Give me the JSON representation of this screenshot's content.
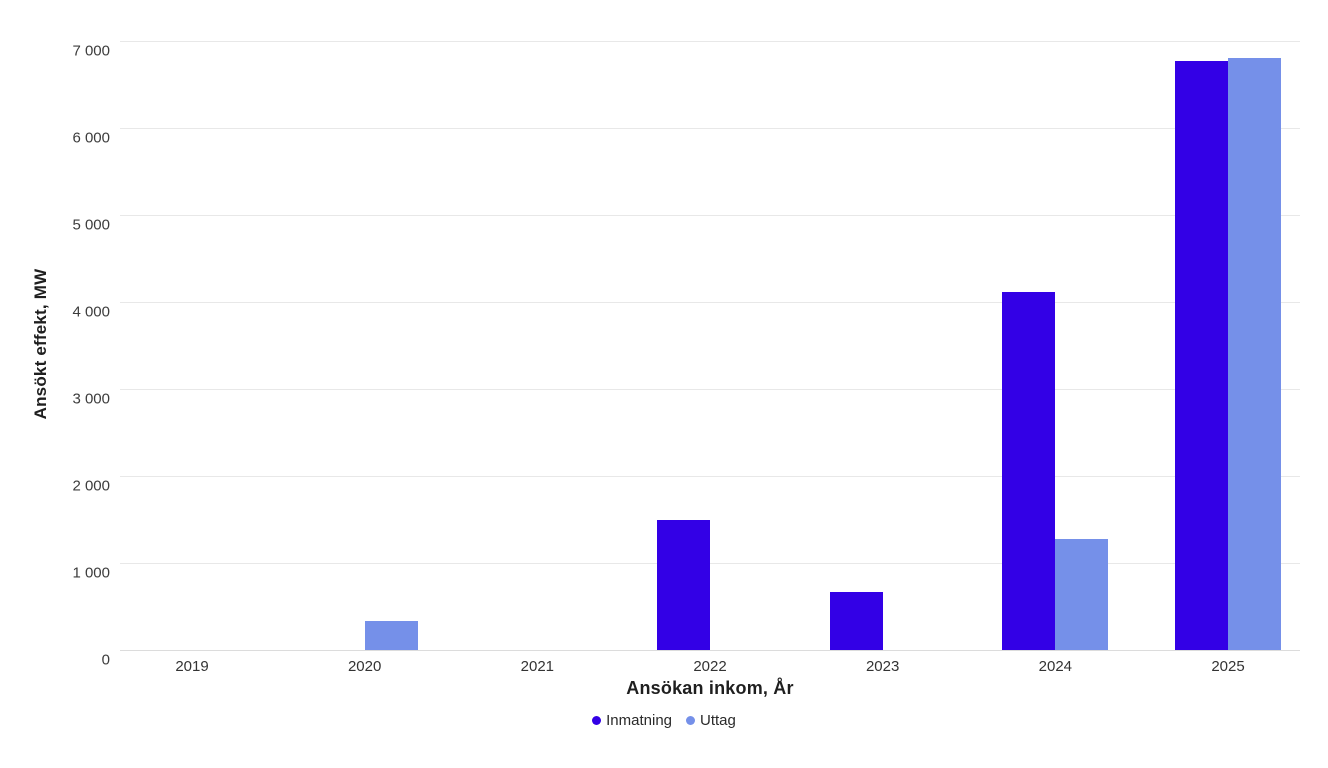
{
  "chart_data": {
    "type": "bar",
    "title": "",
    "xlabel": "Ansökan inkom, År",
    "ylabel": "Ansökt effekt, MW",
    "categories": [
      "2019",
      "2020",
      "2021",
      "2022",
      "2023",
      "2024",
      "2025"
    ],
    "series": [
      {
        "name": "Inmatning",
        "color": "#3300E6",
        "values": [
          0,
          0,
          0,
          1490,
          670,
          4120,
          6770
        ]
      },
      {
        "name": "Uttag",
        "color": "#7590E9",
        "values": [
          0,
          330,
          0,
          0,
          0,
          1280,
          6800
        ]
      }
    ],
    "ylim": [
      0,
      7000
    ],
    "y_ticks": [
      {
        "value": 0,
        "label": "0"
      },
      {
        "value": 1000,
        "label": "1 000"
      },
      {
        "value": 2000,
        "label": "2 000"
      },
      {
        "value": 3000,
        "label": "3 000"
      },
      {
        "value": 4000,
        "label": "4 000"
      },
      {
        "value": 5000,
        "label": "5 000"
      },
      {
        "value": 6000,
        "label": "6 000"
      },
      {
        "value": 7000,
        "label": "7 000"
      }
    ],
    "grid": "horizontal",
    "legend_position": "bottom-center"
  },
  "colors": {
    "background": "#FFFFFF",
    "gridline": "#E8E8E8",
    "zero_line": "#DCDCDC",
    "tick_text": "#3C3C3C",
    "title_text": "#1F1F1F"
  }
}
